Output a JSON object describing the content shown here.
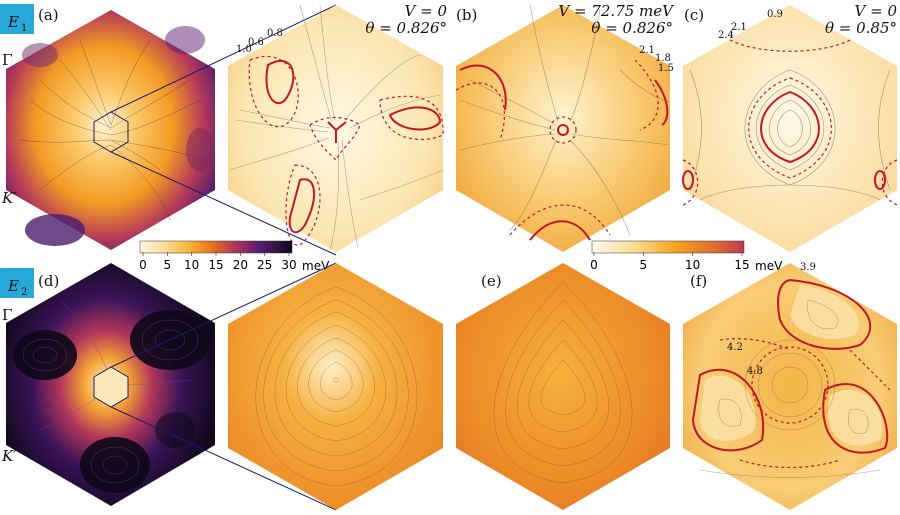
{
  "rows": [
    {
      "badge": "E",
      "badge_sub": "1",
      "badge_color": "#26a9d9"
    },
    {
      "badge": "E",
      "badge_sub": "2",
      "badge_color": "#26a9d9"
    }
  ],
  "panels": {
    "a": {
      "label": "(a)",
      "gamma": "Γ",
      "kprime": "K′"
    },
    "a_zoom": {
      "line1": "V = 0",
      "line2": "θ = 0.826°",
      "contours": [
        "1.0",
        "0.6",
        "0.8"
      ]
    },
    "b": {
      "label": "(b)",
      "line1": "V = 72.75 meV",
      "line2": "θ = 0.826°",
      "contours": [
        "2.1",
        "1.8",
        "1.5"
      ]
    },
    "c": {
      "label": "(c)",
      "line1": "V = 0",
      "line2": "θ = 0.85°",
      "contours": [
        "0.9",
        "2.1",
        "2.4"
      ]
    },
    "d": {
      "label": "(d)",
      "gamma": "Γ",
      "kprime": "K′"
    },
    "e": {
      "label": "(e)"
    },
    "f": {
      "label": "(f)",
      "contours": [
        "3.9",
        "4.2",
        "4.8"
      ]
    }
  },
  "colorbars": [
    {
      "name": "inferno-colorbar",
      "ticks": [
        "0",
        "5",
        "10",
        "15",
        "20",
        "25",
        "30"
      ],
      "unit": "meV",
      "min": 0,
      "max": 30
    },
    {
      "name": "orange-colorbar",
      "ticks": [
        "0",
        "5",
        "10",
        "15"
      ],
      "unit": "meV",
      "min": 0,
      "max": 15
    }
  ],
  "colors": {
    "badge": "#26a9d9",
    "contour_red": "#c0182a",
    "frame_blue": "#1a1a6e",
    "pale": "#fdf3d2",
    "orange": "#f5a21e",
    "dark": "#120a1e"
  }
}
